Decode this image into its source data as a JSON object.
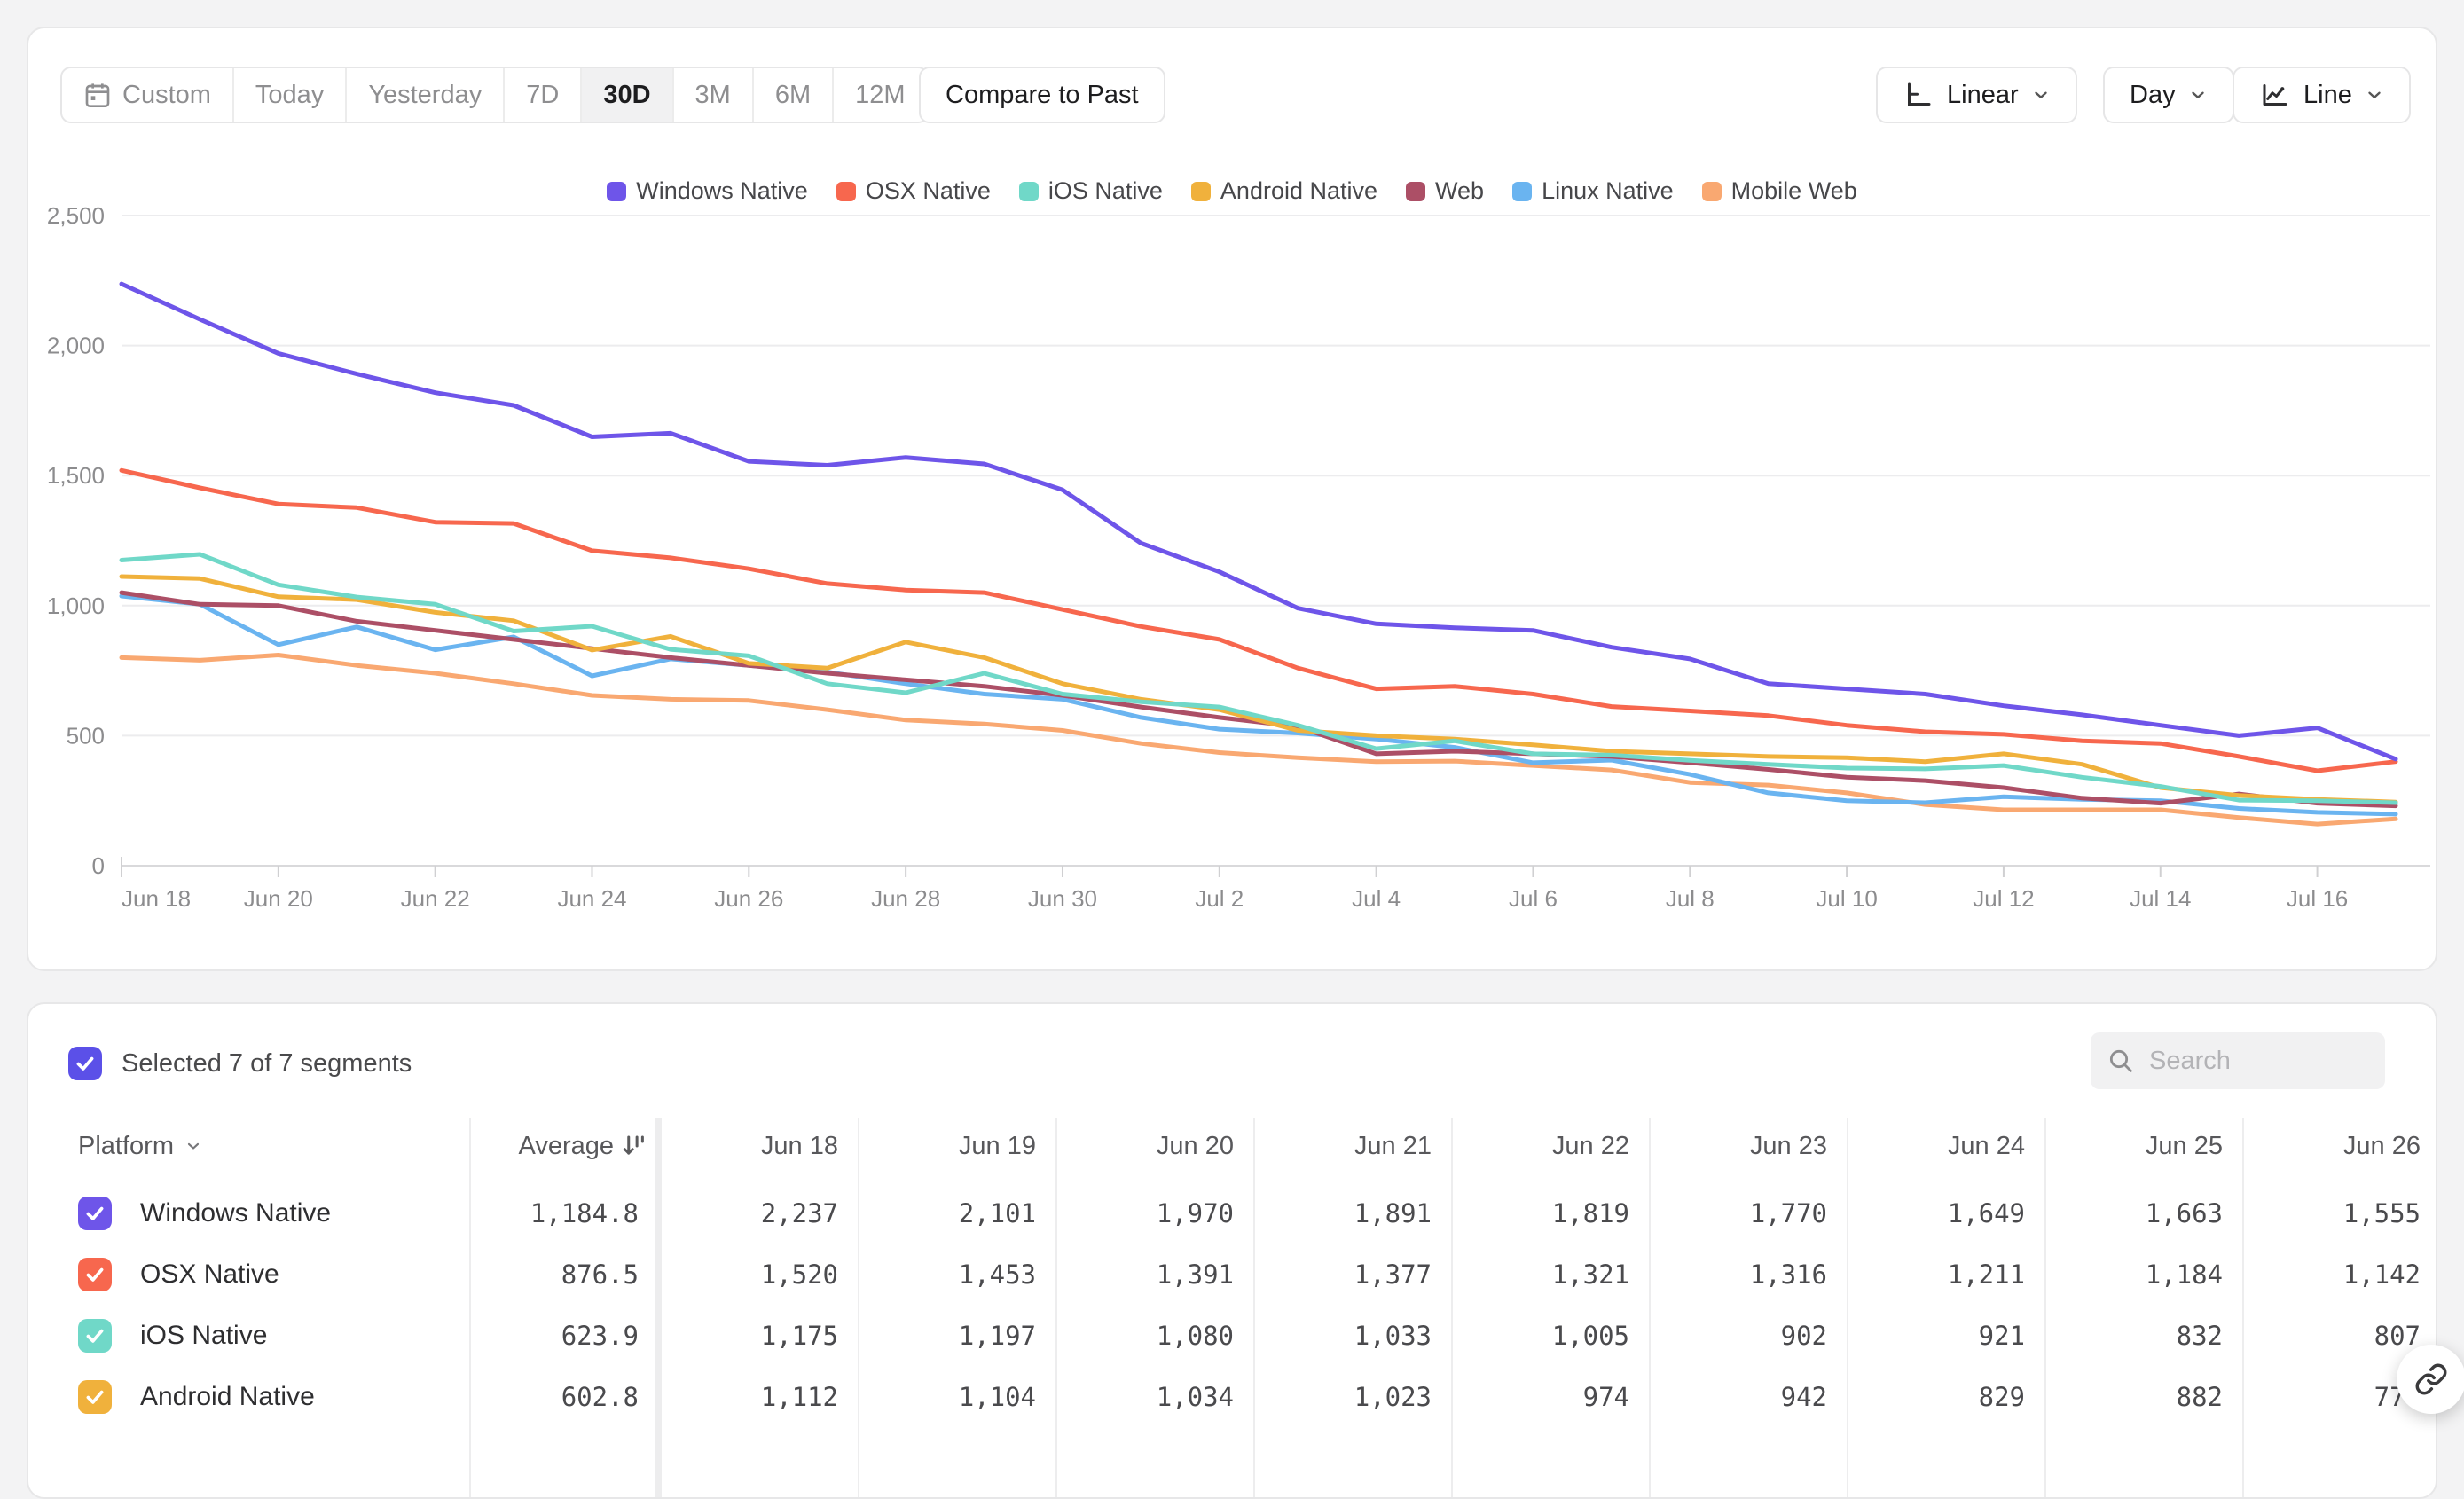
{
  "toolbar": {
    "date_ranges": [
      {
        "label": "Custom",
        "icon": "calendar-icon",
        "active": false
      },
      {
        "label": "Today",
        "active": false
      },
      {
        "label": "Yesterday",
        "active": false
      },
      {
        "label": "7D",
        "active": false
      },
      {
        "label": "30D",
        "active": true
      },
      {
        "label": "3M",
        "active": false
      },
      {
        "label": "6M",
        "active": false
      },
      {
        "label": "12M",
        "active": false
      }
    ],
    "compare_button": "Compare to Past",
    "scale_dropdown": "Linear",
    "interval_dropdown": "Day",
    "chart_type_dropdown": "Line"
  },
  "chart_data": {
    "type": "line",
    "x": [
      "Jun 18",
      "Jun 19",
      "Jun 20",
      "Jun 21",
      "Jun 22",
      "Jun 23",
      "Jun 24",
      "Jun 25",
      "Jun 26",
      "Jun 27",
      "Jun 28",
      "Jun 29",
      "Jun 30",
      "Jul 1",
      "Jul 2",
      "Jul 3",
      "Jul 4",
      "Jul 5",
      "Jul 6",
      "Jul 7",
      "Jul 8",
      "Jul 9",
      "Jul 10",
      "Jul 11",
      "Jul 12",
      "Jul 13",
      "Jul 14",
      "Jul 15",
      "Jul 16",
      "Jul 17"
    ],
    "x_tick_labels": [
      "Jun 18",
      "Jun 20",
      "Jun 22",
      "Jun 24",
      "Jun 26",
      "Jun 28",
      "Jun 30",
      "Jul 2",
      "Jul 4",
      "Jul 6",
      "Jul 8",
      "Jul 10",
      "Jul 12",
      "Jul 14",
      "Jul 16"
    ],
    "y_ticks": {
      "values": [
        0,
        500,
        1000,
        1500,
        2000,
        2500
      ],
      "labels": [
        "0",
        "500",
        "1,000",
        "1,500",
        "2,000",
        "2,500"
      ]
    },
    "ylim": [
      0,
      2500
    ],
    "grid": "horizontal",
    "legend_position": "top",
    "series": [
      {
        "name": "Windows Native",
        "color": "#6E55E9",
        "values": [
          2237,
          2101,
          1970,
          1891,
          1819,
          1770,
          1649,
          1663,
          1555,
          1540,
          1570,
          1545,
          1445,
          1240,
          1130,
          990,
          930,
          915,
          905,
          840,
          795,
          700,
          680,
          660,
          615,
          580,
          540,
          500,
          530,
          410
        ]
      },
      {
        "name": "OSX Native",
        "color": "#F7674E",
        "values": [
          1520,
          1453,
          1391,
          1377,
          1321,
          1316,
          1211,
          1184,
          1142,
          1085,
          1060,
          1050,
          985,
          920,
          870,
          760,
          680,
          690,
          660,
          612,
          595,
          577,
          540,
          515,
          505,
          480,
          470,
          420,
          365,
          400
        ]
      },
      {
        "name": "iOS Native",
        "color": "#70D8C8",
        "values": [
          1175,
          1197,
          1080,
          1033,
          1005,
          902,
          921,
          832,
          807,
          700,
          665,
          740,
          660,
          630,
          610,
          540,
          450,
          480,
          430,
          425,
          405,
          390,
          375,
          372,
          385,
          340,
          305,
          252,
          250,
          242
        ]
      },
      {
        "name": "Android Native",
        "color": "#F0B13C",
        "values": [
          1112,
          1104,
          1034,
          1023,
          974,
          942,
          829,
          882,
          778,
          760,
          860,
          800,
          700,
          640,
          600,
          520,
          500,
          487,
          465,
          440,
          430,
          420,
          415,
          400,
          430,
          390,
          300,
          270,
          255,
          245
        ]
      },
      {
        "name": "Web",
        "color": "#AC4F66",
        "values": [
          1050,
          1005,
          1000,
          940,
          905,
          870,
          835,
          800,
          770,
          740,
          715,
          690,
          655,
          610,
          570,
          535,
          430,
          440,
          430,
          420,
          396,
          370,
          340,
          327,
          300,
          260,
          240,
          276,
          240,
          230
        ]
      },
      {
        "name": "Linux Native",
        "color": "#6AB4F0",
        "values": [
          1037,
          1005,
          850,
          918,
          830,
          880,
          730,
          795,
          770,
          745,
          700,
          660,
          640,
          570,
          525,
          510,
          487,
          455,
          396,
          406,
          351,
          280,
          250,
          242,
          265,
          255,
          250,
          220,
          205,
          198
        ]
      },
      {
        "name": "Mobile Web",
        "color": "#F9A871",
        "values": [
          800,
          790,
          810,
          770,
          740,
          700,
          655,
          640,
          635,
          600,
          560,
          545,
          520,
          470,
          435,
          415,
          400,
          402,
          385,
          368,
          320,
          310,
          280,
          235,
          215,
          215,
          215,
          185,
          160,
          180
        ]
      }
    ]
  },
  "table": {
    "selection_summary": "Selected 7 of 7 segments",
    "master_checkbox_color": "#5B50E8",
    "search_placeholder": "Search",
    "column_headers": {
      "platform": "Platform",
      "average": "Average",
      "dates": [
        "Jun 18",
        "Jun 19",
        "Jun 20",
        "Jun 21",
        "Jun 22",
        "Jun 23",
        "Jun 24",
        "Jun 25",
        "Jun 26"
      ]
    },
    "rows": [
      {
        "label": "Windows Native",
        "checkbox_color": "#6E55E9",
        "checked": true,
        "average": "1,184.8",
        "values": [
          "2,237",
          "2,101",
          "1,970",
          "1,891",
          "1,819",
          "1,770",
          "1,649",
          "1,663",
          "1,555"
        ]
      },
      {
        "label": "OSX Native",
        "checkbox_color": "#F7674E",
        "checked": true,
        "average": "876.5",
        "values": [
          "1,520",
          "1,453",
          "1,391",
          "1,377",
          "1,321",
          "1,316",
          "1,211",
          "1,184",
          "1,142"
        ]
      },
      {
        "label": "iOS Native",
        "checkbox_color": "#70D8C8",
        "checked": true,
        "average": "623.9",
        "values": [
          "1,175",
          "1,197",
          "1,080",
          "1,033",
          "1,005",
          "902",
          "921",
          "832",
          "807"
        ]
      },
      {
        "label": "Android Native",
        "checkbox_color": "#F0B13C",
        "checked": true,
        "average": "602.8",
        "values": [
          "1,112",
          "1,104",
          "1,034",
          "1,023",
          "974",
          "942",
          "829",
          "882",
          "778"
        ]
      }
    ]
  }
}
